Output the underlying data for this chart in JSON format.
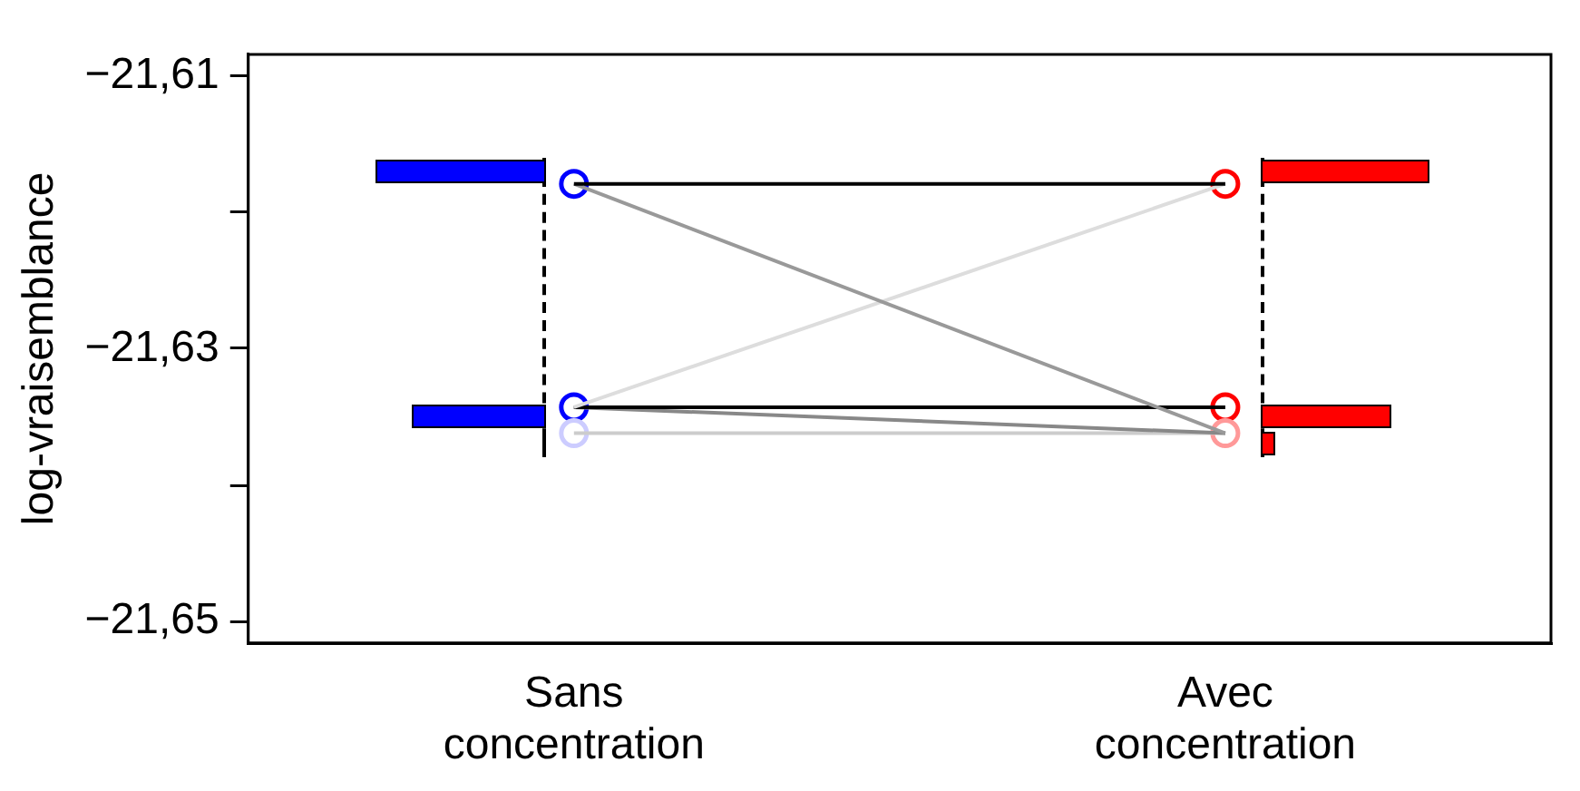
{
  "chart_data": {
    "type": "line",
    "ylabel": "log-vraisemblance",
    "categories": [
      "Sans concentration",
      "Avec concentration"
    ],
    "ylim": [
      -21.6516,
      -21.6084
    ],
    "yticks": [
      {
        "value": -21.61,
        "label": "−21,61"
      },
      {
        "value": -21.62,
        "label": null
      },
      {
        "value": -21.63,
        "label": "−21,63"
      },
      {
        "value": -21.64,
        "label": null
      },
      {
        "value": -21.65,
        "label": "−21,65"
      }
    ],
    "grid": false,
    "legend": false,
    "series": [
      {
        "color": "#000000",
        "values": [
          -21.6179,
          -21.6179
        ]
      },
      {
        "color": "#999999",
        "values": [
          -21.6179,
          -21.6362
        ]
      },
      {
        "color": "#dddddd",
        "values": [
          -21.6343,
          -21.6179
        ]
      },
      {
        "color": "#000000",
        "values": [
          -21.6343,
          -21.6343
        ]
      },
      {
        "color": "#888888",
        "values": [
          -21.6343,
          -21.6362
        ]
      },
      {
        "color": "#cccccc",
        "values": [
          -21.6362,
          -21.6362
        ]
      },
      {
        "type": "scatter",
        "x": [
          "Sans concentration",
          "Sans concentration",
          "Sans concentration"
        ],
        "values": [
          -21.6179,
          -21.6343,
          -21.6362
        ],
        "colors": [
          "#0000ff",
          "#0000ff",
          "#ccccff"
        ]
      },
      {
        "type": "scatter",
        "x": [
          "Avec concentration",
          "Avec concentration",
          "Avec concentration"
        ],
        "values": [
          -21.6179,
          -21.6343,
          -21.6362
        ],
        "colors": [
          "#ff0000",
          "#ff0000",
          "#ff9999"
        ]
      }
    ]
  }
}
